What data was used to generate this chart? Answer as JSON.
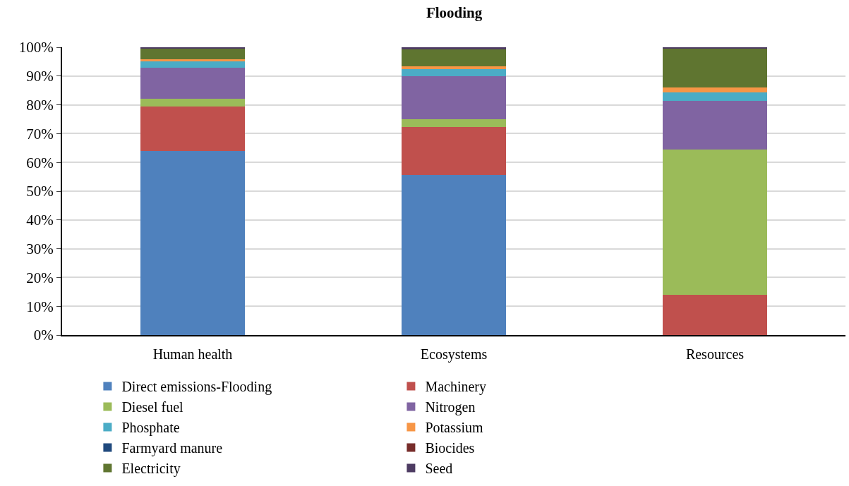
{
  "chart_data": {
    "type": "bar",
    "title": "Flooding",
    "stacked": true,
    "categories": [
      "Human health",
      "Ecosystems",
      "Resources"
    ],
    "series": [
      {
        "name": "Direct emissions-Flooding",
        "color": "#4f81bd",
        "values": [
          64.0,
          55.6,
          0
        ]
      },
      {
        "name": "Machinery",
        "color": "#c0504d",
        "values": [
          15.4,
          16.6,
          14.0
        ]
      },
      {
        "name": "Diesel fuel",
        "color": "#9bbb59",
        "values": [
          2.6,
          2.8,
          50.5
        ]
      },
      {
        "name": "Nitrogen",
        "color": "#8064a2",
        "values": [
          10.8,
          15.0,
          16.8
        ]
      },
      {
        "name": "Phosphate",
        "color": "#4bacc6",
        "values": [
          2.3,
          2.4,
          3.1
        ]
      },
      {
        "name": "Potassium",
        "color": "#f79646",
        "values": [
          0.7,
          1.0,
          1.6
        ]
      },
      {
        "name": "Farmyard manure",
        "color": "#1f497d",
        "values": [
          0,
          0,
          0
        ]
      },
      {
        "name": "Biocides",
        "color": "#772c2a",
        "values": [
          0,
          0,
          0
        ]
      },
      {
        "name": "Electricity",
        "color": "#5f7530",
        "values": [
          3.9,
          5.8,
          13.5
        ]
      },
      {
        "name": "Seed",
        "color": "#4d3b62",
        "values": [
          0.3,
          0.8,
          0.5
        ]
      }
    ],
    "ylim": [
      0,
      100
    ],
    "yticks": [
      {
        "value": 0,
        "label": "0%"
      },
      {
        "value": 10,
        "label": "10%"
      },
      {
        "value": 20,
        "label": "20%"
      },
      {
        "value": 30,
        "label": "30%"
      },
      {
        "value": 40,
        "label": "40%"
      },
      {
        "value": 50,
        "label": "50%"
      },
      {
        "value": 60,
        "label": "60%"
      },
      {
        "value": 70,
        "label": "70%"
      },
      {
        "value": 80,
        "label": "80%"
      },
      {
        "value": 90,
        "label": "90%"
      },
      {
        "value": 100,
        "label": "100%"
      }
    ],
    "grid": "y",
    "legend": "bottom"
  }
}
